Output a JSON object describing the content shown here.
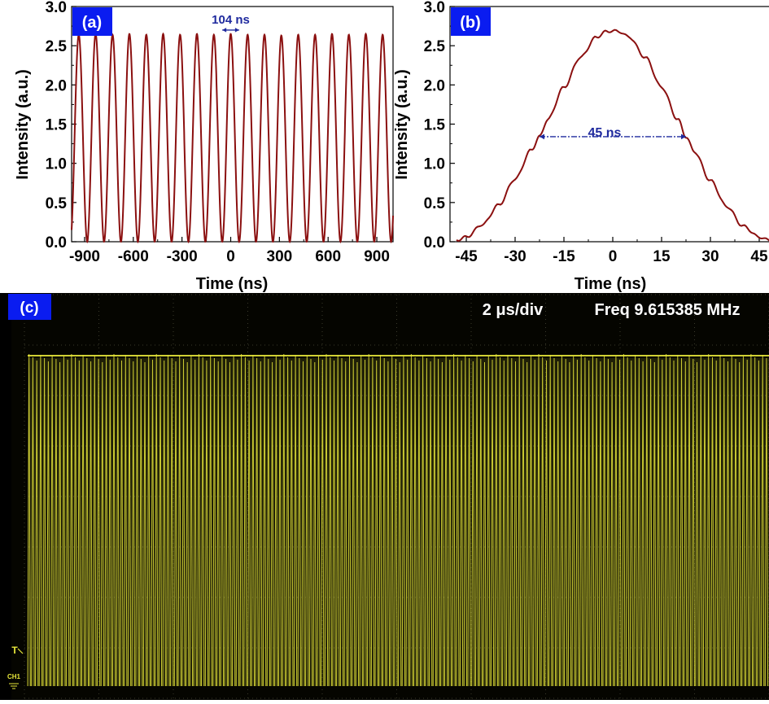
{
  "chart_data": [
    {
      "type": "line",
      "panel_label": "(a)",
      "xlabel": "Time (ns)",
      "ylabel": "Intensity (a.u.)",
      "xlim": [
        -980,
        1000
      ],
      "ylim": [
        0,
        3.0
      ],
      "xticks": [
        -900,
        -600,
        -300,
        0,
        300,
        600,
        900
      ],
      "xtick_labels": [
        "-900",
        "-600",
        "-300",
        "0",
        "300",
        "600",
        "900"
      ],
      "yticks": [
        0,
        0.5,
        1.0,
        1.5,
        2.0,
        2.5,
        3.0
      ],
      "ytick_labels": [
        "0.0",
        "0.5",
        "1.0",
        "1.5",
        "2.0",
        "2.5",
        "3.0"
      ],
      "annotation": "104 ns",
      "annotation_span_x": [
        -52,
        52
      ],
      "annotation_y": 2.7,
      "series": [
        {
          "x": [
            -936,
            -832,
            -728,
            -624,
            -520,
            -416,
            -312,
            -208,
            -104,
            0,
            104,
            208,
            312,
            416,
            520,
            624,
            728,
            832,
            936
          ],
          "values": [
            2.64,
            2.65,
            2.64,
            2.65,
            2.64,
            2.65,
            2.64,
            2.65,
            2.64,
            2.65,
            2.64,
            2.64,
            2.63,
            2.64,
            2.64,
            2.65,
            2.64,
            2.65,
            2.64
          ],
          "baseline": 0.0,
          "period": 104,
          "color": "#8b1010"
        }
      ]
    },
    {
      "type": "line",
      "panel_label": "(b)",
      "xlabel": "Time (ns)",
      "ylabel": "Intensity (a.u.)",
      "xlim": [
        -50,
        50
      ],
      "ylim": [
        0,
        3.0
      ],
      "xticks": [
        -45,
        -30,
        -15,
        0,
        15,
        30,
        45
      ],
      "xtick_labels": [
        "-45",
        "-30",
        "-15",
        "0",
        "15",
        "30",
        "45"
      ],
      "yticks": [
        0,
        0.5,
        1.0,
        1.5,
        2.0,
        2.5,
        3.0
      ],
      "ytick_labels": [
        "0.0",
        "0.5",
        "1.0",
        "1.5",
        "2.0",
        "2.5",
        "3.0"
      ],
      "annotation": "45 ns",
      "annotation_span_x": [
        -22.5,
        22.5
      ],
      "annotation_y": 1.34,
      "series": [
        {
          "x": [
            -48,
            -45,
            -40,
            -35,
            -30,
            -25,
            -22.5,
            -20,
            -15,
            -10,
            -5,
            -2,
            0,
            2,
            5,
            10,
            15,
            20,
            22.5,
            25,
            30,
            35,
            40,
            45,
            48
          ],
          "values": [
            0.02,
            0.06,
            0.22,
            0.47,
            0.8,
            1.17,
            1.34,
            1.56,
            1.97,
            2.35,
            2.61,
            2.68,
            2.69,
            2.68,
            2.61,
            2.35,
            1.97,
            1.56,
            1.34,
            1.15,
            0.78,
            0.45,
            0.2,
            0.06,
            0.02
          ],
          "color": "#8b1010"
        }
      ]
    },
    {
      "type": "line",
      "panel_label": "(c)",
      "timebase_label": "2 μs/div",
      "frequency_label": "Freq 9.615385 MHz",
      "channel_label": "CH1",
      "trigger_marker": "T",
      "divisions": 10,
      "series": [
        {
          "pulse_count": 192,
          "pulse_period_ns": 104,
          "trace_color": "#e7e73a"
        }
      ]
    }
  ],
  "colors": {
    "panel_label_bg": "#0a1cf0",
    "trace_red": "#8b1010",
    "annotation_blue": "#1f2a9e",
    "scope_bg": "#050500",
    "scope_grid": "#3a3a2a",
    "scope_trace": "#e7e73a"
  }
}
